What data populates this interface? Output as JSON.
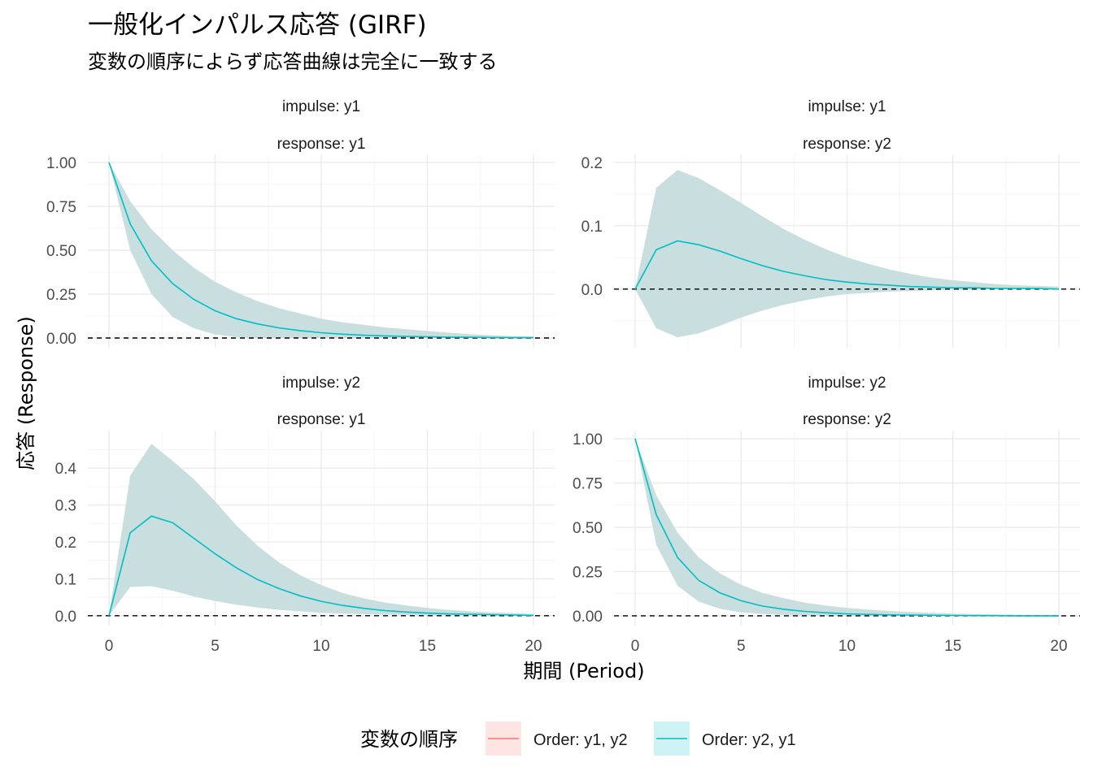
{
  "title": "一般化インパルス応答 (GIRF)",
  "subtitle": "変数の順序によらず応答曲線は完全に一致する",
  "xlabel": "期間 (Period)",
  "ylabel": "応答 (Response)",
  "legend": {
    "title": "変数の順序",
    "position": "bottom",
    "entries": [
      {
        "label": "Order: y1, y2",
        "line_color": "#F8766D",
        "fill_color": "#F8766D"
      },
      {
        "label": "Order: y2, y1",
        "line_color": "#00BFC4",
        "fill_color": "#00BFC4"
      }
    ]
  },
  "colors": {
    "order_y1_y2": "#F8766D",
    "order_y2_y1": "#00BFC4",
    "band_overlap": "#C9DEDE",
    "zero_line": "#000000"
  },
  "chart_data": {
    "type": "line",
    "x": [
      0,
      1,
      2,
      3,
      4,
      5,
      6,
      7,
      8,
      9,
      10,
      11,
      12,
      13,
      14,
      15,
      16,
      17,
      18,
      19,
      20
    ],
    "xlim": [
      0,
      20
    ],
    "xticks": [
      0,
      5,
      10,
      15,
      20
    ],
    "grid": true,
    "zero_reference_line": 0,
    "facets": [
      {
        "impulse_label": "impulse: y1",
        "response_label": "response: y1",
        "ylim": [
          -0.01,
          1.0
        ],
        "yticks": [
          "1.00",
          "0.75",
          "0.50",
          "0.25",
          "0.00"
        ],
        "ytick_values": [
          1.0,
          0.75,
          0.5,
          0.25,
          0.0
        ],
        "series": [
          {
            "name": "Order: y2, y1",
            "values": [
              1.0,
              0.65,
              0.44,
              0.31,
              0.22,
              0.155,
              0.11,
              0.08,
              0.058,
              0.042,
              0.03,
              0.022,
              0.016,
              0.012,
              0.009,
              0.007,
              0.005,
              0.004,
              0.003,
              0.002,
              0.002
            ],
            "lower": [
              1.0,
              0.5,
              0.25,
              0.12,
              0.055,
              0.02,
              0.005,
              0.0,
              0.0,
              0.0,
              0.0,
              0.0,
              0.0,
              0.0,
              0.0,
              0.0,
              0.0,
              0.0,
              0.0,
              0.0,
              0.0
            ],
            "upper": [
              1.0,
              0.78,
              0.62,
              0.5,
              0.4,
              0.32,
              0.26,
              0.21,
              0.17,
              0.14,
              0.11,
              0.09,
              0.075,
              0.06,
              0.05,
              0.04,
              0.03,
              0.022,
              0.016,
              0.011,
              0.008
            ]
          }
        ]
      },
      {
        "impulse_label": "impulse: y1",
        "response_label": "response: y2",
        "ylim": [
          -0.08,
          0.2
        ],
        "yticks": [
          "0.2",
          "0.1",
          "0.0"
        ],
        "ytick_values": [
          0.2,
          0.1,
          0.0
        ],
        "series": [
          {
            "name": "Order: y2, y1",
            "values": [
              0.0,
              0.062,
              0.076,
              0.07,
              0.06,
              0.048,
              0.037,
              0.028,
              0.021,
              0.015,
              0.011,
              0.008,
              0.006,
              0.004,
              0.003,
              0.002,
              0.002,
              0.001,
              0.001,
              0.001,
              0.0
            ],
            "lower": [
              0.0,
              -0.062,
              -0.076,
              -0.07,
              -0.058,
              -0.045,
              -0.034,
              -0.025,
              -0.018,
              -0.012,
              -0.008,
              -0.006,
              -0.004,
              -0.003,
              -0.002,
              -0.001,
              -0.001,
              0.0,
              0.0,
              0.0,
              0.0
            ],
            "upper": [
              0.0,
              0.16,
              0.188,
              0.175,
              0.156,
              0.136,
              0.115,
              0.095,
              0.078,
              0.063,
              0.05,
              0.04,
              0.031,
              0.024,
              0.018,
              0.014,
              0.011,
              0.008,
              0.006,
              0.005,
              0.004
            ]
          }
        ]
      },
      {
        "impulse_label": "impulse: y2",
        "response_label": "response: y1",
        "ylim": [
          -0.005,
          0.48
        ],
        "yticks": [
          "0.4",
          "0.3",
          "0.2",
          "0.1",
          "0.0"
        ],
        "ytick_values": [
          0.4,
          0.3,
          0.2,
          0.1,
          0.0
        ],
        "series": [
          {
            "name": "Order: y2, y1",
            "values": [
              0.0,
              0.225,
              0.27,
              0.252,
              0.21,
              0.168,
              0.13,
              0.098,
              0.074,
              0.054,
              0.039,
              0.028,
              0.02,
              0.014,
              0.01,
              0.007,
              0.005,
              0.004,
              0.003,
              0.002,
              0.001
            ],
            "lower": [
              0.0,
              0.078,
              0.08,
              0.068,
              0.052,
              0.04,
              0.03,
              0.022,
              0.016,
              0.012,
              0.008,
              0.006,
              0.004,
              0.003,
              0.002,
              0.001,
              0.001,
              0.0,
              0.0,
              0.0,
              0.0
            ],
            "upper": [
              0.0,
              0.38,
              0.466,
              0.42,
              0.37,
              0.31,
              0.245,
              0.19,
              0.145,
              0.11,
              0.083,
              0.062,
              0.047,
              0.036,
              0.028,
              0.021,
              0.016,
              0.012,
              0.009,
              0.007,
              0.005
            ]
          }
        ]
      },
      {
        "impulse_label": "impulse: y2",
        "response_label": "response: y2",
        "ylim": [
          -0.01,
          1.0
        ],
        "yticks": [
          "1.00",
          "0.75",
          "0.50",
          "0.25",
          "0.00"
        ],
        "ytick_values": [
          1.0,
          0.75,
          0.5,
          0.25,
          0.0
        ],
        "series": [
          {
            "name": "Order: y2, y1",
            "values": [
              1.0,
              0.57,
              0.33,
              0.2,
              0.13,
              0.085,
              0.055,
              0.037,
              0.025,
              0.017,
              0.011,
              0.008,
              0.005,
              0.004,
              0.003,
              0.002,
              0.001,
              0.001,
              0.0,
              0.0,
              0.0
            ],
            "lower": [
              1.0,
              0.4,
              0.17,
              0.08,
              0.04,
              0.02,
              0.01,
              0.005,
              0.002,
              0.001,
              0.0,
              0.0,
              0.0,
              0.0,
              0.0,
              0.0,
              0.0,
              0.0,
              0.0,
              0.0,
              0.0
            ],
            "upper": [
              1.0,
              0.68,
              0.47,
              0.33,
              0.24,
              0.175,
              0.13,
              0.1,
              0.075,
              0.058,
              0.045,
              0.035,
              0.027,
              0.021,
              0.016,
              0.012,
              0.009,
              0.007,
              0.005,
              0.004,
              0.003
            ]
          }
        ]
      }
    ]
  }
}
